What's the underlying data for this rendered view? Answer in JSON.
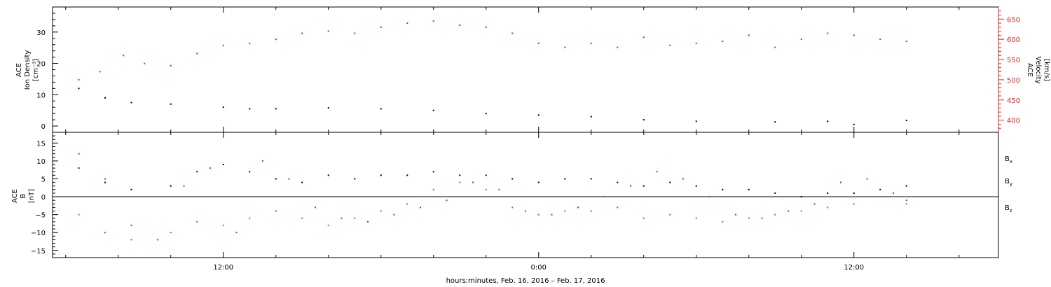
{
  "chart_data": [
    {
      "type": "scatter",
      "panel": "top",
      "ylabel_left": [
        "ACE",
        "Ion Density",
        "[cm⁻³]"
      ],
      "ylabel_right": [
        "ACE",
        "Velocity",
        "[km/s]"
      ],
      "left_axis": {
        "ylim": [
          -2,
          38
        ],
        "ticks": [
          0,
          10,
          20,
          30
        ],
        "tick_labels": [
          "0",
          "10",
          "20",
          "30"
        ],
        "color": "#000000"
      },
      "right_axis": {
        "ylim": [
          370,
          680
        ],
        "ticks": [
          400,
          450,
          500,
          550,
          600,
          650
        ],
        "tick_labels": [
          "400",
          "450",
          "500",
          "550",
          "600",
          "650"
        ],
        "color": "#e8201a"
      },
      "series": [
        {
          "axis": "left",
          "color": "#000000",
          "x": [
            6.5,
            7.5,
            8.5,
            10,
            12,
            13,
            14,
            16,
            18,
            20,
            22,
            24,
            26,
            28,
            30,
            33,
            35,
            36,
            38
          ],
          "y": [
            12,
            9,
            7.5,
            7,
            6,
            5.5,
            5.5,
            5.8,
            5.5,
            5,
            4,
            3.5,
            3,
            2,
            1.5,
            1.3,
            1.5,
            0.5,
            1.8
          ]
        },
        {
          "axis": "right",
          "color": "#e8201a",
          "x": [
            6.5,
            7.3,
            8.2,
            9,
            10,
            11,
            12,
            13,
            14,
            15,
            16,
            17,
            18,
            19,
            20,
            21,
            22,
            23,
            24,
            25,
            26,
            27,
            28,
            29,
            30,
            31,
            32,
            33,
            34,
            35,
            36,
            37,
            38
          ],
          "y": [
            500,
            520,
            560,
            540,
            535,
            565,
            585,
            590,
            600,
            615,
            620,
            615,
            630,
            640,
            645,
            635,
            630,
            615,
            590,
            580,
            590,
            580,
            605,
            585,
            590,
            595,
            610,
            580,
            600,
            615,
            610,
            600,
            595
          ]
        }
      ]
    },
    {
      "type": "scatter",
      "panel": "bottom",
      "ylabel_left": [
        "ACE",
        "B",
        "[nT]"
      ],
      "ylim": [
        -17,
        18
      ],
      "ticks": [
        -15,
        -10,
        -5,
        0,
        5,
        10,
        15
      ],
      "tick_labels": [
        "−15",
        "−10",
        "−5",
        "0",
        "5",
        "10",
        "15"
      ],
      "zero_line": true,
      "series": [
        {
          "name": "B",
          "sub": "x",
          "color": "#000000",
          "x": [
            6.5,
            7.5,
            8.5,
            10,
            11,
            12,
            13,
            14,
            15,
            16,
            17,
            18,
            19,
            20,
            21,
            22,
            23,
            24,
            25,
            26,
            27,
            28,
            29,
            30,
            31,
            32,
            33,
            34,
            35,
            36,
            37,
            38
          ],
          "y": [
            8,
            4,
            2,
            3,
            7,
            9,
            7,
            5,
            4,
            6,
            5,
            6,
            6,
            7,
            6,
            6,
            5,
            4,
            5,
            5,
            4,
            3,
            4,
            3,
            2,
            2,
            1,
            0,
            1,
            1,
            2,
            3
          ]
        },
        {
          "name": "B",
          "sub": "y",
          "color": "#1a8ad8",
          "x": [
            6.5,
            7.5,
            8.5,
            10,
            11,
            12,
            13,
            14,
            15,
            16,
            17,
            18,
            19,
            20,
            21,
            22,
            23,
            24,
            25,
            26,
            27,
            28,
            29,
            30,
            31,
            32,
            33,
            34,
            35,
            36,
            37,
            38
          ],
          "y": [
            -5,
            -10,
            -12,
            -10,
            -7,
            -8,
            -6,
            -4,
            -6,
            -8,
            -6,
            -4,
            -2,
            2,
            4,
            2,
            -3,
            -5,
            -4,
            -4,
            -3,
            -6,
            -5,
            -6,
            -7,
            -6,
            -5,
            -4,
            -3,
            -2,
            0,
            -2
          ]
        },
        {
          "name": "B",
          "sub": "z",
          "color": "#e8201a",
          "x": [
            6.5,
            7.5,
            8.5,
            9.5,
            10.5,
            11.5,
            12.5,
            13.5,
            14.5,
            15.5,
            16.5,
            17.5,
            18.5,
            19.5,
            20.5,
            21.5,
            22.5,
            23.5,
            24.5,
            25.5,
            26.5,
            27.5,
            28.5,
            29.5,
            30.5,
            31.5,
            32.5,
            33.5,
            34.5,
            35.5,
            36.5,
            37.5,
            38
          ],
          "y": [
            12,
            5,
            -8,
            -12,
            3,
            8,
            -10,
            10,
            5,
            -3,
            -6,
            -7,
            -5,
            -3,
            -1,
            4,
            2,
            -4,
            -5,
            -3,
            0,
            3,
            7,
            5,
            0,
            -5,
            -6,
            -4,
            -2,
            4,
            5,
            1,
            -1
          ]
        }
      ]
    }
  ],
  "x_axis": {
    "range_hours": [
      5.5,
      41.5
    ],
    "major_ticks": [
      12,
      24,
      36
    ],
    "major_labels": [
      "12:00",
      "0:00",
      "12:00"
    ],
    "minor_step": 2,
    "title": "hours:minutes, Feb. 16, 2016 – Feb. 17, 2016"
  },
  "legend": {
    "placement": "right",
    "items": [
      {
        "base": "B",
        "sub": "x",
        "color": "#000000"
      },
      {
        "base": "B",
        "sub": "y",
        "color": "#1a8ad8"
      },
      {
        "base": "B",
        "sub": "z",
        "color": "#e8201a"
      }
    ]
  }
}
